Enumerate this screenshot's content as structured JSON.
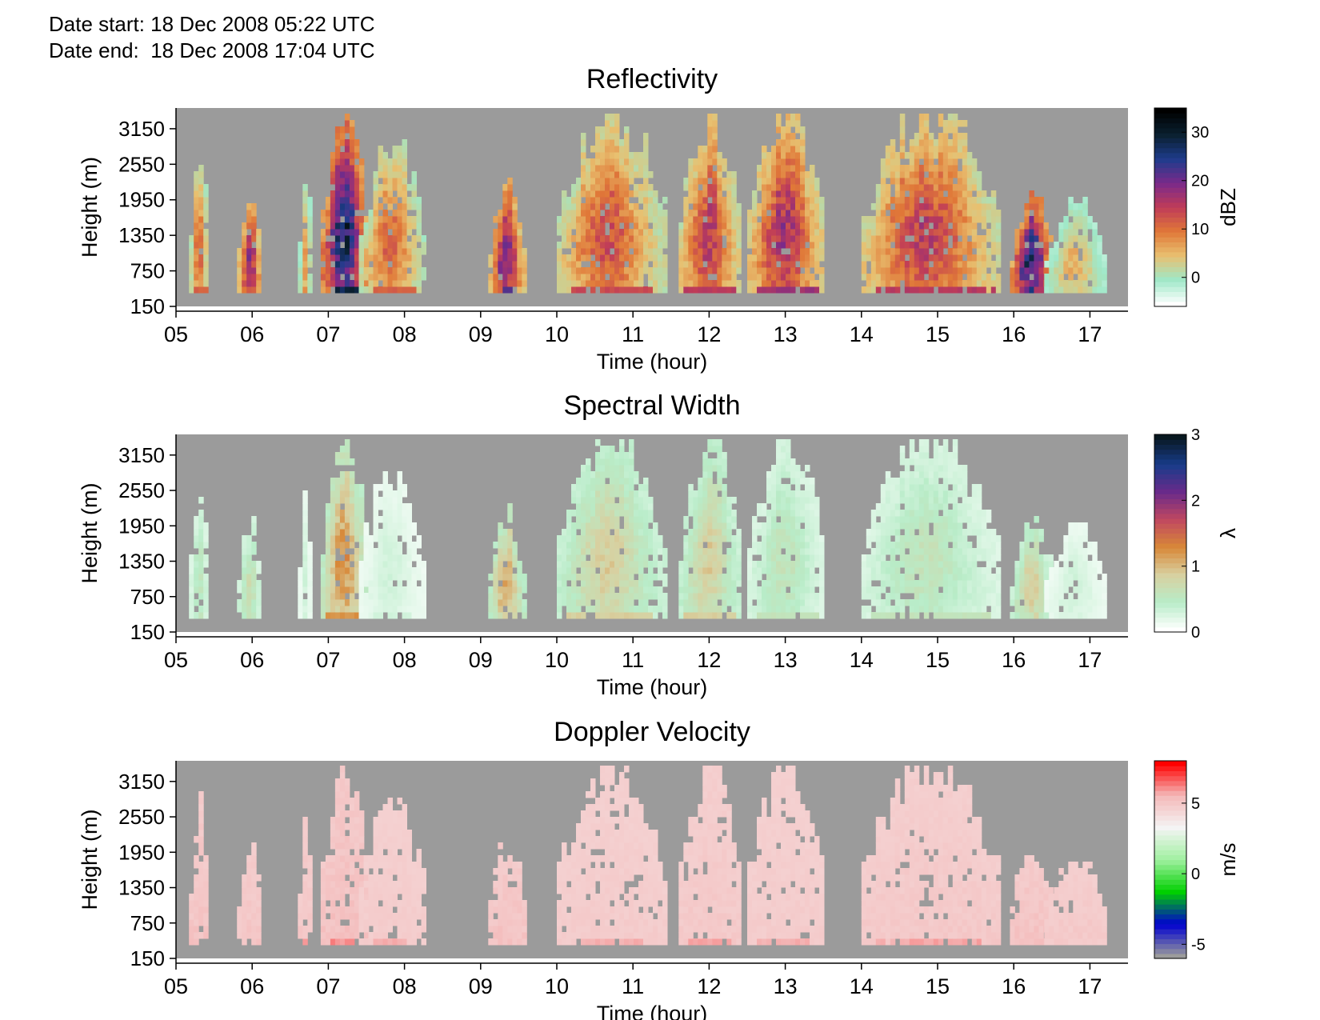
{
  "header": {
    "date_start_line": "Date start: 18 Dec 2008 05:22 UTC",
    "date_end_line": "Date end:  18 Dec 2008 17:04 UTC"
  },
  "colors": {
    "background_nodata": "#9b9b9b",
    "reflectivity_scale": [
      "#ffffff",
      "#9fe8c8",
      "#e8c070",
      "#e07838",
      "#c03c58",
      "#7a2a8a",
      "#1e3c8c",
      "#0a2030",
      "#000000"
    ],
    "width_scale": [
      "#ffffff",
      "#b8ecc8",
      "#d8d0a0",
      "#d88838",
      "#c04860",
      "#6a2a8a",
      "#183c8a",
      "#081820"
    ],
    "velocity_scale": [
      "#9b9b9b",
      "#0000d0",
      "#00d000",
      "#a0f0a0",
      "#f4f4f4",
      "#f4b8b8",
      "#ff0000"
    ]
  },
  "chart_data": [
    {
      "type": "heatmap",
      "title": "Reflectivity",
      "xlabel": "Time (hour)",
      "ylabel": "Height (m)",
      "x_ticks": [
        "05",
        "06",
        "07",
        "08",
        "09",
        "10",
        "11",
        "12",
        "13",
        "14",
        "15",
        "16",
        "17"
      ],
      "y_ticks": [
        "150",
        "750",
        "1350",
        "1950",
        "2550",
        "3150"
      ],
      "xlim": [
        5.0,
        17.5
      ],
      "ylim": [
        150,
        3500
      ],
      "colorbar": {
        "label": "dBZ",
        "ticks": [
          "0",
          "10",
          "20",
          "30"
        ],
        "range": [
          -6,
          35
        ]
      },
      "echo_cells": [
        {
          "t0": 5.17,
          "t1": 5.4,
          "h_top": 2750,
          "peak": 12
        },
        {
          "t0": 5.8,
          "t1": 6.1,
          "h_top": 2100,
          "peak": 20
        },
        {
          "t0": 6.6,
          "t1": 6.75,
          "h_top": 2600,
          "peak": 8
        },
        {
          "t0": 6.9,
          "t1": 7.5,
          "h_top": 3300,
          "peak": 30
        },
        {
          "t0": 7.4,
          "t1": 8.25,
          "h_top": 2900,
          "peak": 12
        },
        {
          "t0": 9.1,
          "t1": 9.55,
          "h_top": 2200,
          "peak": 22
        },
        {
          "t0": 10.0,
          "t1": 11.4,
          "h_top": 3500,
          "peak": 14
        },
        {
          "t0": 11.6,
          "t1": 12.4,
          "h_top": 3500,
          "peak": 16
        },
        {
          "t0": 12.5,
          "t1": 13.5,
          "h_top": 3500,
          "peak": 18
        },
        {
          "t0": 14.0,
          "t1": 15.8,
          "h_top": 3500,
          "peak": 16
        },
        {
          "t0": 15.95,
          "t1": 16.5,
          "h_top": 2100,
          "peak": 28
        },
        {
          "t0": 16.4,
          "t1": 17.2,
          "h_top": 1900,
          "peak": 6
        }
      ]
    },
    {
      "type": "heatmap",
      "title": "Spectral Width",
      "xlabel": "Time (hour)",
      "ylabel": "Height (m)",
      "x_ticks": [
        "05",
        "06",
        "07",
        "08",
        "09",
        "10",
        "11",
        "12",
        "13",
        "14",
        "15",
        "16",
        "17"
      ],
      "y_ticks": [
        "150",
        "750",
        "1350",
        "1950",
        "2550",
        "3150"
      ],
      "xlim": [
        5.0,
        17.5
      ],
      "ylim": [
        150,
        3500
      ],
      "colorbar": {
        "label": "λ",
        "ticks": [
          "0",
          "1",
          "2",
          "3"
        ],
        "range": [
          0,
          3
        ]
      },
      "echo_cells": [
        {
          "t0": 5.17,
          "t1": 5.4,
          "h_top": 2750,
          "peak": 0.6
        },
        {
          "t0": 5.8,
          "t1": 6.1,
          "h_top": 2100,
          "peak": 0.7
        },
        {
          "t0": 6.6,
          "t1": 6.75,
          "h_top": 2600,
          "peak": 0.3
        },
        {
          "t0": 6.9,
          "t1": 7.5,
          "h_top": 3300,
          "peak": 1.3
        },
        {
          "t0": 7.4,
          "t1": 8.25,
          "h_top": 2900,
          "peak": 0.3
        },
        {
          "t0": 9.1,
          "t1": 9.55,
          "h_top": 2200,
          "peak": 1.2
        },
        {
          "t0": 10.0,
          "t1": 11.4,
          "h_top": 3500,
          "peak": 0.9
        },
        {
          "t0": 11.6,
          "t1": 12.4,
          "h_top": 3500,
          "peak": 0.9
        },
        {
          "t0": 12.5,
          "t1": 13.5,
          "h_top": 3500,
          "peak": 0.6
        },
        {
          "t0": 14.0,
          "t1": 15.8,
          "h_top": 3500,
          "peak": 0.6
        },
        {
          "t0": 15.95,
          "t1": 16.5,
          "h_top": 2100,
          "peak": 0.9
        },
        {
          "t0": 16.4,
          "t1": 17.2,
          "h_top": 1900,
          "peak": 0.3
        }
      ]
    },
    {
      "type": "heatmap",
      "title": "Doppler Velocity",
      "xlabel": "Time (hour)",
      "ylabel": "Height (m)",
      "x_ticks": [
        "05",
        "06",
        "07",
        "08",
        "09",
        "10",
        "11",
        "12",
        "13",
        "14",
        "15",
        "16",
        "17"
      ],
      "y_ticks": [
        "150",
        "750",
        "1350",
        "1950",
        "2550",
        "3150"
      ],
      "xlim": [
        5.0,
        17.5
      ],
      "ylim": [
        150,
        3500
      ],
      "colorbar": {
        "label": "m/s",
        "ticks": [
          "-5",
          "0",
          "5"
        ],
        "range": [
          -6,
          8
        ]
      },
      "echo_cells": [
        {
          "t0": 5.17,
          "t1": 5.4,
          "h_top": 2750,
          "peak": 3
        },
        {
          "t0": 5.8,
          "t1": 6.1,
          "h_top": 2100,
          "peak": 2.5
        },
        {
          "t0": 6.6,
          "t1": 6.75,
          "h_top": 2600,
          "peak": 2.5
        },
        {
          "t0": 6.9,
          "t1": 7.5,
          "h_top": 3300,
          "peak": 3.5
        },
        {
          "t0": 7.4,
          "t1": 8.25,
          "h_top": 2900,
          "peak": 1.5
        },
        {
          "t0": 9.1,
          "t1": 9.55,
          "h_top": 2200,
          "peak": 3
        },
        {
          "t0": 10.0,
          "t1": 11.4,
          "h_top": 3500,
          "peak": 1.5
        },
        {
          "t0": 11.6,
          "t1": 12.4,
          "h_top": 3500,
          "peak": 2
        },
        {
          "t0": 12.5,
          "t1": 13.5,
          "h_top": 3500,
          "peak": 1.5
        },
        {
          "t0": 14.0,
          "t1": 15.8,
          "h_top": 3500,
          "peak": 2
        },
        {
          "t0": 15.95,
          "t1": 16.5,
          "h_top": 2100,
          "peak": 3
        },
        {
          "t0": 16.4,
          "t1": 17.2,
          "h_top": 1900,
          "peak": 2
        }
      ]
    }
  ]
}
